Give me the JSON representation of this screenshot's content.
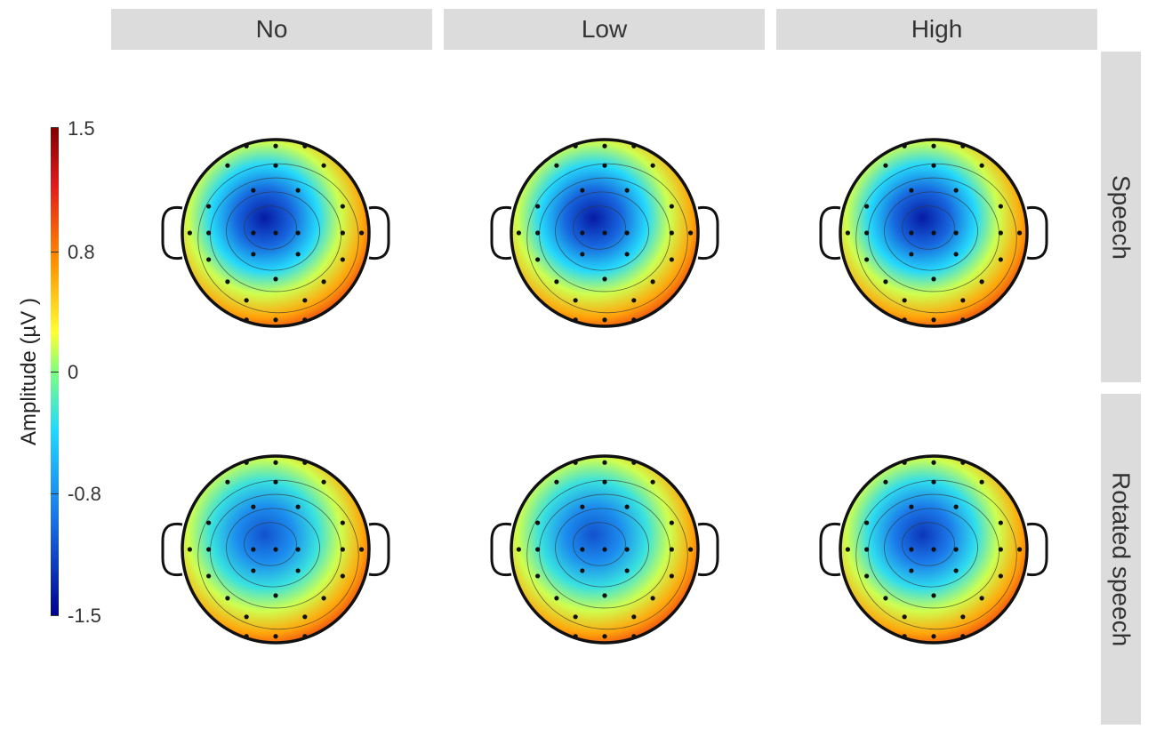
{
  "columns": [
    "No",
    "Low",
    "High"
  ],
  "rows": [
    "Speech",
    "Rotated speech"
  ],
  "colorbar": {
    "label": "Amplitude (µV )",
    "ticks": [
      "1.5",
      "0.8",
      "0",
      "-0.8",
      "-1.5"
    ],
    "range": [
      -1.5,
      1.5
    ],
    "colormap": [
      "#00008f",
      "#1a73e8",
      "#22d8ff",
      "#7fff7f",
      "#ffff33",
      "#ff8c00",
      "#e31a1c",
      "#7f0000"
    ]
  },
  "chart_data": {
    "type": "heatmap",
    "description_kind": "scalp topography grid",
    "x": [
      "No",
      "Low",
      "High"
    ],
    "y": [
      "Speech",
      "Rotated speech"
    ],
    "series": [
      {
        "name": "Speech",
        "values": [
          -1.4,
          -1.4,
          -1.4
        ]
      },
      {
        "name": "Rotated speech",
        "values": [
          -1.2,
          -1.2,
          -1.3
        ]
      }
    ],
    "zlim": [
      -1.5,
      1.5
    ],
    "zlabel": "Amplitude (µV )"
  }
}
